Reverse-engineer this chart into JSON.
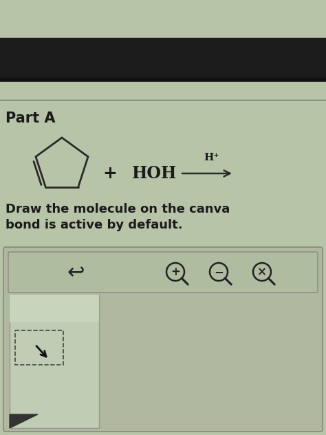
{
  "bg_greenish": "#b8c4a8",
  "bg_dark_band": "#1c1c1c",
  "bg_dark_strip": "#2a2a2a",
  "bg_canvas_outer": "#b0b8a0",
  "bg_canvas_inner": "#a8b898",
  "bg_white_panel": "#c8d4bc",
  "bg_toolbar_inner": "#b0bca0",
  "text_color": "#1a1a1a",
  "line_color": "#2a2a2a",
  "separator_color": "#6a7060",
  "part_a": "Part A",
  "line1": "Draw the molecule on the canva",
  "line2": "bond is active by default.",
  "fig_width": 4.74,
  "fig_height": 6.32,
  "dpi": 100
}
